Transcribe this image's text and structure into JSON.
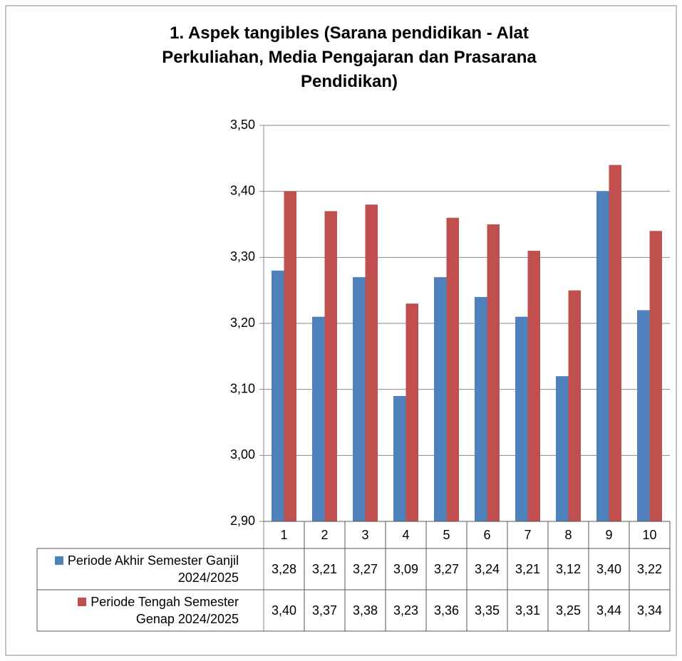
{
  "chart_data": {
    "type": "bar",
    "title": "1. Aspek tangibles (Sarana pendidikan - Alat Perkuliahan, Media Pengajaran dan Prasarana Pendidikan)",
    "categories": [
      "1",
      "2",
      "3",
      "4",
      "5",
      "6",
      "7",
      "8",
      "9",
      "10"
    ],
    "series": [
      {
        "name": "Periode Akhir Semester Ganjil 2024/2025",
        "color": "#4f81bd",
        "values": [
          3.28,
          3.21,
          3.27,
          3.09,
          3.27,
          3.24,
          3.21,
          3.12,
          3.4,
          3.22
        ],
        "value_labels": [
          "3,28",
          "3,21",
          "3,27",
          "3,09",
          "3,27",
          "3,24",
          "3,21",
          "3,12",
          "3,40",
          "3,22"
        ]
      },
      {
        "name": "Periode Tengah Semester Genap 2024/2025",
        "color": "#c0504d",
        "values": [
          3.4,
          3.37,
          3.38,
          3.23,
          3.36,
          3.35,
          3.31,
          3.25,
          3.44,
          3.34
        ],
        "value_labels": [
          "3,40",
          "3,37",
          "3,38",
          "3,23",
          "3,36",
          "3,35",
          "3,31",
          "3,25",
          "3,44",
          "3,34"
        ]
      }
    ],
    "ylim": [
      2.9,
      3.5
    ],
    "yticks": [
      {
        "value": 2.9,
        "label": "2,90"
      },
      {
        "value": 3.0,
        "label": "3,00"
      },
      {
        "value": 3.1,
        "label": "3,10"
      },
      {
        "value": 3.2,
        "label": "3,20"
      },
      {
        "value": 3.3,
        "label": "3,30"
      },
      {
        "value": 3.4,
        "label": "3,40"
      },
      {
        "value": 3.5,
        "label": "3,50"
      }
    ],
    "grid": true
  }
}
